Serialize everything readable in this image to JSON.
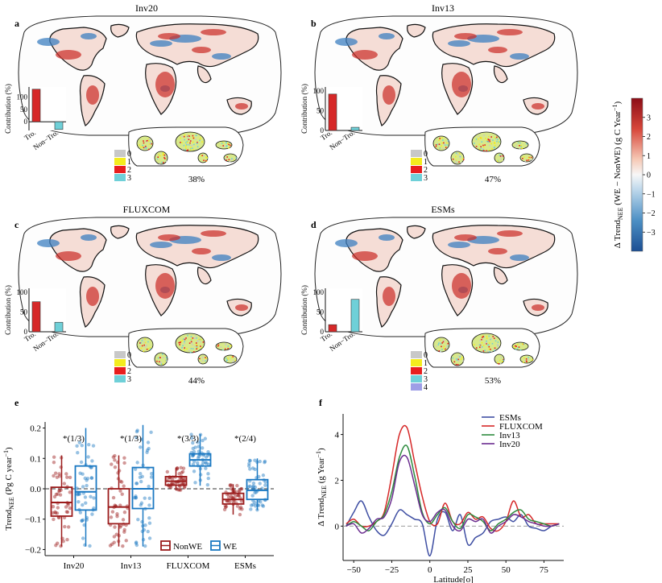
{
  "colors": {
    "nonwe": "#9b1b1b",
    "we": "#1a78c2",
    "esms": "#3f4fa3",
    "fluxcom": "#d62828",
    "inv13": "#2e8b3e",
    "inv20": "#6a2c8f",
    "cat0": "#c8c8c8",
    "cat1": "#f4ec1e",
    "cat2": "#e81e1e",
    "cat3": "#6fd0d8",
    "cat4": "#9e9ee6"
  },
  "colorbar": {
    "label": "Δ Trend",
    "label_sub": "NEE",
    "label_rest": " (WE − NonWE) (g C Year",
    "label_sup": "−1",
    "label_end": ")",
    "ticks": [
      "3",
      "2",
      "1",
      "0",
      "−1",
      "−2",
      "−3"
    ],
    "tick_values": [
      3,
      2,
      1,
      0,
      -1,
      -2,
      -3
    ],
    "range": [
      -4,
      4
    ]
  },
  "panels": [
    {
      "letter": "a",
      "title": "Inv20",
      "contribution": {
        "ylabel": "Contribution (%)",
        "categories": [
          "Tro.",
          "Non−Tro."
        ],
        "values": [
          131,
          -31
        ],
        "ticks": [
          "100",
          "50",
          "0"
        ],
        "tick_values": [
          100,
          50,
          0
        ],
        "ylim": [
          -35,
          140
        ]
      },
      "legend": [
        "0",
        "1",
        "2",
        "3"
      ],
      "inset_percent": "38%"
    },
    {
      "letter": "b",
      "title": "Inv13",
      "contribution": {
        "ylabel": "Contribution (%)",
        "categories": [
          "Tro.",
          "Non−Tro."
        ],
        "values": [
          92,
          8
        ],
        "ticks": [
          "100",
          "50",
          "0"
        ],
        "tick_values": [
          100,
          50,
          0
        ],
        "ylim": [
          0,
          110
        ]
      },
      "legend": [
        "0",
        "1",
        "2",
        "3"
      ],
      "inset_percent": "47%"
    },
    {
      "letter": "c",
      "title": "FLUXCOM",
      "contribution": {
        "ylabel": "Contribution (%)",
        "categories": [
          "Tro.",
          "Non−Tro."
        ],
        "values": [
          76,
          24
        ],
        "ticks": [
          "100",
          "50",
          "0"
        ],
        "tick_values": [
          100,
          50,
          0
        ],
        "ylim": [
          0,
          110
        ]
      },
      "legend": [
        "0",
        "1",
        "2",
        "3"
      ],
      "inset_percent": "44%"
    },
    {
      "letter": "d",
      "title": "ESMs",
      "contribution": {
        "ylabel": "Contribution (%)",
        "categories": [
          "Tro.",
          "Non−Tro."
        ],
        "values": [
          18,
          82
        ],
        "ticks": [
          "100",
          "50",
          "0"
        ],
        "tick_values": [
          100,
          50,
          0
        ],
        "ylim": [
          0,
          110
        ]
      },
      "legend": [
        "0",
        "1",
        "2",
        "3",
        "4"
      ],
      "inset_percent": "53%"
    }
  ],
  "chart_data": [
    {
      "type": "box",
      "letter": "e",
      "ylabel_main": "Trend",
      "ylabel_sub": "NEE",
      "ylabel_rest": " (Pg C year",
      "ylabel_sup": "−1",
      "ylabel_end": ")",
      "categories": [
        "Inv20",
        "Inv13",
        "FLUXCOM",
        "ESMs"
      ],
      "ylim": [
        -0.22,
        0.22
      ],
      "yticks": [
        "0.2",
        "0.1",
        "0.0",
        "−0.1",
        "−0.2"
      ],
      "ytick_values": [
        0.2,
        0.1,
        0.0,
        -0.1,
        -0.2
      ],
      "annotations": [
        "*(1/3)",
        "*(1/3)",
        "*(3/3)",
        "*(2/4)"
      ],
      "legend": [
        "NonWE",
        "WE"
      ],
      "series": [
        {
          "name": "NonWE",
          "boxes": [
            {
              "min": -0.19,
              "q1": -0.09,
              "median": -0.045,
              "q3": 0.005,
              "max": 0.11
            },
            {
              "min": -0.19,
              "q1": -0.115,
              "median": -0.06,
              "q3": 0.0,
              "max": 0.11
            },
            {
              "min": -0.005,
              "q1": 0.012,
              "median": 0.025,
              "q3": 0.04,
              "max": 0.07
            },
            {
              "min": -0.085,
              "q1": -0.05,
              "median": -0.035,
              "q3": -0.015,
              "max": 0.015
            }
          ]
        },
        {
          "name": "WE",
          "boxes": [
            {
              "min": -0.19,
              "q1": -0.07,
              "median": -0.01,
              "q3": 0.075,
              "max": 0.2
            },
            {
              "min": -0.19,
              "q1": -0.065,
              "median": 0.0,
              "q3": 0.07,
              "max": 0.21
            },
            {
              "min": 0.01,
              "q1": 0.075,
              "median": 0.095,
              "q3": 0.115,
              "max": 0.18
            },
            {
              "min": -0.07,
              "q1": -0.035,
              "median": -0.005,
              "q3": 0.03,
              "max": 0.1
            }
          ]
        }
      ]
    },
    {
      "type": "line",
      "letter": "f",
      "ylabel_main": "Δ Trend",
      "ylabel_sub": "NEE",
      "ylabel_rest": " (g Year",
      "ylabel_sup": "−1",
      "ylabel_end": ")",
      "xlabel": "Latitude[o]",
      "xlim": [
        -57,
        88
      ],
      "ylim": [
        -1.5,
        4.9
      ],
      "xticks": [
        "−50",
        "−25",
        "0",
        "25",
        "50",
        "75"
      ],
      "xtick_values": [
        -50,
        -25,
        0,
        25,
        50,
        75
      ],
      "yticks": [
        "4",
        "2",
        "0"
      ],
      "ytick_values": [
        4,
        2,
        0
      ],
      "reference_line": 0,
      "x": [
        -55,
        -50,
        -45,
        -40,
        -35,
        -30,
        -25,
        -20,
        -15,
        -10,
        -5,
        0,
        5,
        10,
        15,
        20,
        25,
        30,
        35,
        40,
        45,
        50,
        55,
        60,
        65,
        70,
        75,
        80,
        85
      ],
      "series": [
        {
          "name": "ESMs",
          "values": [
            0.0,
            0.6,
            1.1,
            0.4,
            -0.2,
            -0.4,
            0.1,
            0.7,
            0.5,
            0.3,
            0.1,
            -1.3,
            0.3,
            0.6,
            -0.2,
            0.5,
            -0.8,
            -0.5,
            -0.3,
            0.2,
            0.3,
            0.4,
            0.2,
            0.5,
            0.0,
            -0.1,
            -0.2,
            0.0,
            0.1
          ]
        },
        {
          "name": "FLUXCOM",
          "values": [
            0.1,
            0.3,
            0.0,
            0.0,
            0.2,
            0.6,
            2.2,
            4.0,
            4.3,
            2.8,
            1.3,
            0.2,
            0.1,
            1.0,
            0.2,
            0.1,
            0.6,
            0.3,
            0.4,
            -0.1,
            -0.2,
            0.2,
            1.1,
            0.4,
            0.5,
            0.1,
            0.1,
            0.1,
            0.1
          ]
        },
        {
          "name": "Inv13",
          "values": [
            0.0,
            0.2,
            0.0,
            -0.2,
            0.2,
            0.5,
            1.5,
            3.0,
            3.5,
            2.2,
            0.6,
            0.1,
            0.5,
            0.8,
            0.2,
            -0.1,
            0.5,
            0.4,
            0.2,
            -0.2,
            0.1,
            0.3,
            0.6,
            0.7,
            0.3,
            0.2,
            0.1,
            0.0,
            0.1
          ]
        },
        {
          "name": "Inv20",
          "values": [
            0.0,
            0.1,
            -0.3,
            -0.1,
            0.3,
            0.4,
            1.2,
            2.8,
            3.0,
            1.8,
            0.5,
            0.2,
            0.6,
            0.7,
            0.0,
            -0.2,
            0.3,
            0.2,
            0.3,
            -0.3,
            0.0,
            0.2,
            0.5,
            0.4,
            0.2,
            0.1,
            0.0,
            0.0,
            0.1
          ]
        }
      ]
    }
  ]
}
